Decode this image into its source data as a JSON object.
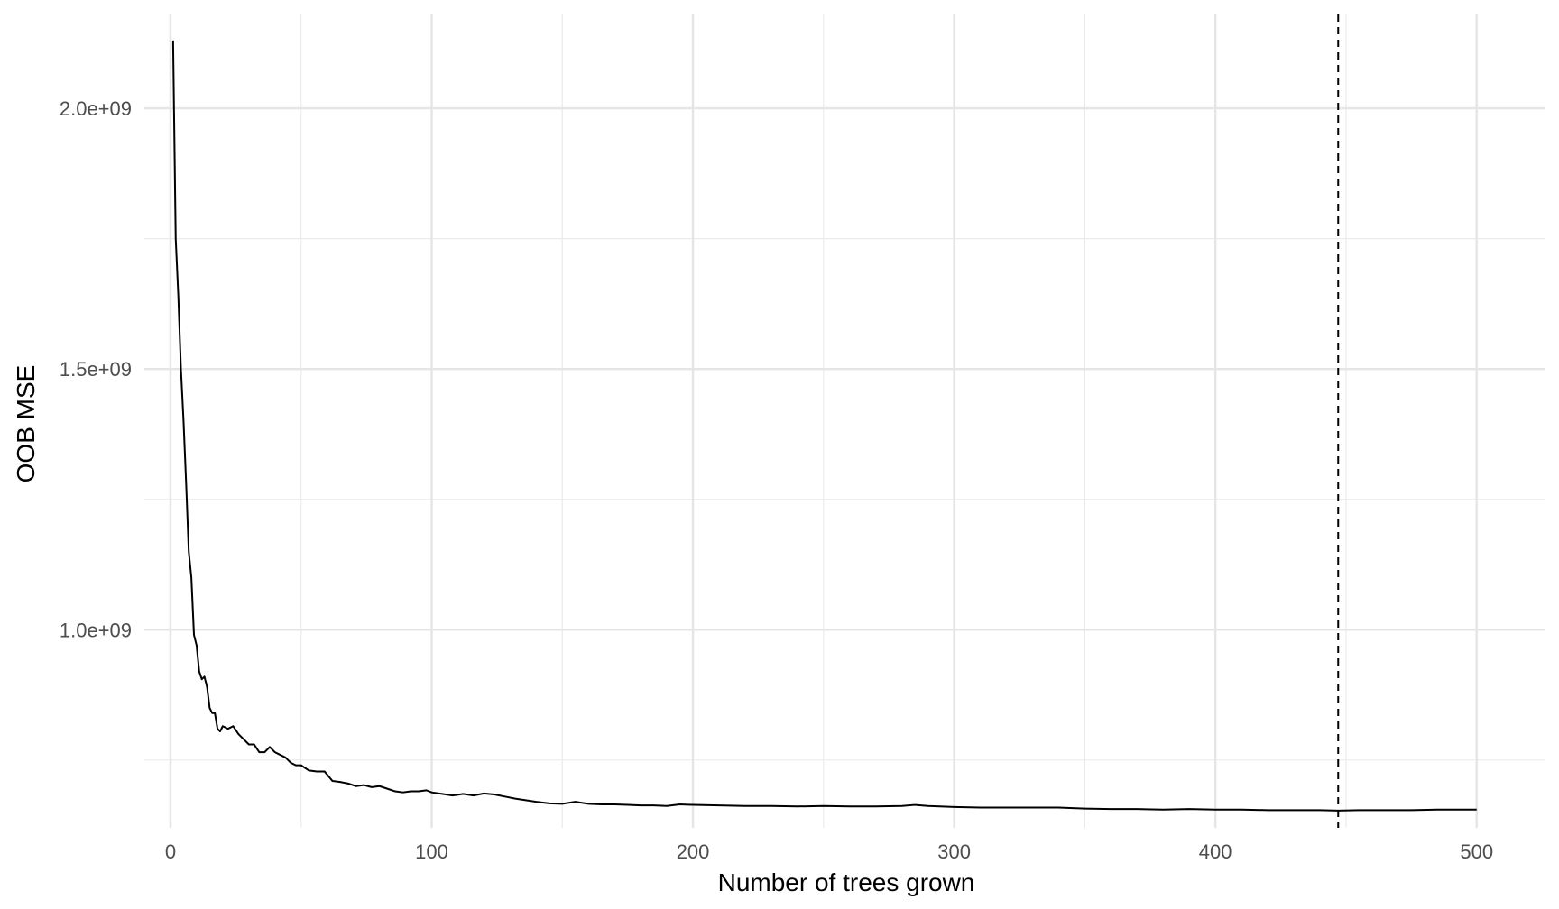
{
  "chart_data": {
    "type": "line",
    "title": "",
    "xlabel": "Number of trees grown",
    "ylabel": "OOB MSE",
    "xlim": [
      -10,
      526
    ],
    "ylim": [
      620000000,
      2180000000
    ],
    "x_ticks": [
      0,
      100,
      200,
      300,
      400,
      500
    ],
    "x_tick_labels": [
      "0",
      "100",
      "200",
      "300",
      "400",
      "500"
    ],
    "y_ticks": [
      1000000000,
      1500000000,
      2000000000
    ],
    "y_tick_labels": [
      "1.0e+09",
      "1.5e+09",
      "2.0e+09"
    ],
    "x_minor_ticks": [
      50,
      150,
      250,
      350,
      450
    ],
    "y_minor_ticks": [
      750000000,
      1250000000,
      1750000000
    ],
    "grid": true,
    "line_color": "#000000",
    "vline": {
      "x": 447,
      "style": "dashed",
      "color": "#000000"
    },
    "series": [
      {
        "points": [
          [
            1,
            2130000000
          ],
          [
            2,
            1750000000
          ],
          [
            3,
            1640000000
          ],
          [
            4,
            1500000000
          ],
          [
            5,
            1400000000
          ],
          [
            6,
            1280000000
          ],
          [
            7,
            1150000000
          ],
          [
            8,
            1100000000
          ],
          [
            9,
            990000000
          ],
          [
            10,
            970000000
          ],
          [
            11,
            920000000
          ],
          [
            12,
            905000000
          ],
          [
            13,
            910000000
          ],
          [
            14,
            890000000
          ],
          [
            15,
            850000000
          ],
          [
            16,
            840000000
          ],
          [
            17,
            840000000
          ],
          [
            18,
            810000000
          ],
          [
            19,
            805000000
          ],
          [
            20,
            815000000
          ],
          [
            22,
            810000000
          ],
          [
            24,
            815000000
          ],
          [
            26,
            800000000
          ],
          [
            28,
            790000000
          ],
          [
            30,
            780000000
          ],
          [
            32,
            780000000
          ],
          [
            34,
            765000000
          ],
          [
            36,
            765000000
          ],
          [
            38,
            775000000
          ],
          [
            40,
            765000000
          ],
          [
            42,
            760000000
          ],
          [
            44,
            755000000
          ],
          [
            46,
            745000000
          ],
          [
            48,
            740000000
          ],
          [
            50,
            740000000
          ],
          [
            53,
            730000000
          ],
          [
            56,
            728000000
          ],
          [
            59,
            728000000
          ],
          [
            62,
            710000000
          ],
          [
            65,
            708000000
          ],
          [
            68,
            705000000
          ],
          [
            71,
            700000000
          ],
          [
            74,
            702000000
          ],
          [
            77,
            698000000
          ],
          [
            80,
            700000000
          ],
          [
            83,
            695000000
          ],
          [
            86,
            690000000
          ],
          [
            89,
            688000000
          ],
          [
            92,
            690000000
          ],
          [
            95,
            690000000
          ],
          [
            98,
            692000000
          ],
          [
            100,
            688000000
          ],
          [
            104,
            685000000
          ],
          [
            108,
            682000000
          ],
          [
            112,
            685000000
          ],
          [
            116,
            682000000
          ],
          [
            120,
            686000000
          ],
          [
            124,
            684000000
          ],
          [
            128,
            680000000
          ],
          [
            132,
            676000000
          ],
          [
            136,
            673000000
          ],
          [
            140,
            670000000
          ],
          [
            145,
            667000000
          ],
          [
            150,
            666000000
          ],
          [
            155,
            670000000
          ],
          [
            160,
            666000000
          ],
          [
            165,
            665000000
          ],
          [
            170,
            665000000
          ],
          [
            175,
            664000000
          ],
          [
            180,
            663000000
          ],
          [
            185,
            663000000
          ],
          [
            190,
            662000000
          ],
          [
            195,
            665000000
          ],
          [
            200,
            664000000
          ],
          [
            210,
            663000000
          ],
          [
            220,
            662000000
          ],
          [
            230,
            662000000
          ],
          [
            240,
            661000000
          ],
          [
            250,
            662000000
          ],
          [
            260,
            661000000
          ],
          [
            270,
            661000000
          ],
          [
            280,
            662000000
          ],
          [
            285,
            664000000
          ],
          [
            290,
            662000000
          ],
          [
            300,
            660000000
          ],
          [
            310,
            659000000
          ],
          [
            320,
            659000000
          ],
          [
            330,
            659000000
          ],
          [
            340,
            659000000
          ],
          [
            350,
            657000000
          ],
          [
            360,
            656000000
          ],
          [
            370,
            656000000
          ],
          [
            380,
            655000000
          ],
          [
            390,
            656000000
          ],
          [
            400,
            655000000
          ],
          [
            410,
            655000000
          ],
          [
            420,
            654000000
          ],
          [
            430,
            654000000
          ],
          [
            440,
            654000000
          ],
          [
            447,
            653000000
          ],
          [
            455,
            654000000
          ],
          [
            465,
            654000000
          ],
          [
            475,
            654000000
          ],
          [
            485,
            655000000
          ],
          [
            500,
            655000000
          ]
        ]
      }
    ]
  }
}
